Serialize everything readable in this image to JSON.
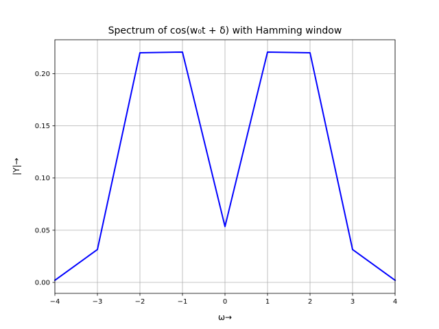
{
  "chart_data": {
    "type": "line",
    "title": "Spectrum of cos(w₀t + δ) with Hamming window",
    "xlabel": "ω→",
    "ylabel": "|Y|→",
    "xlim": [
      -4,
      4
    ],
    "ylim": [
      -0.0105,
      0.2325
    ],
    "xticks": [
      -4,
      -3,
      -2,
      -1,
      0,
      1,
      2,
      3,
      4
    ],
    "xtick_labels": [
      "−4",
      "−3",
      "−2",
      "−1",
      "0",
      "1",
      "2",
      "3",
      "4"
    ],
    "yticks": [
      0.0,
      0.05,
      0.1,
      0.15,
      0.2
    ],
    "ytick_labels": [
      "0.00",
      "0.05",
      "0.10",
      "0.15",
      "0.20"
    ],
    "grid": true,
    "series": [
      {
        "color": "#0000ff",
        "x": [
          -4,
          -3,
          -2,
          -1,
          0,
          1,
          2,
          3,
          4
        ],
        "y": [
          0.002,
          0.0315,
          0.22,
          0.2207,
          0.0535,
          0.2207,
          0.22,
          0.0315,
          0.002
        ]
      }
    ]
  }
}
